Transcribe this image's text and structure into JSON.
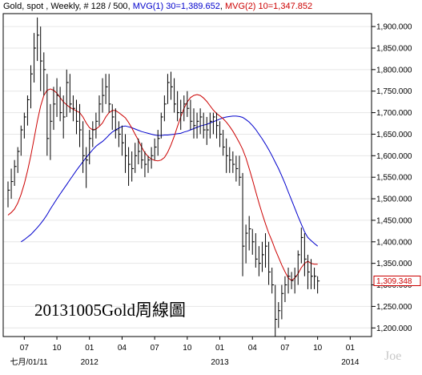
{
  "header": {
    "symbol": "Gold, spot",
    "sep": " ,",
    "period": "Weekly",
    "bars": "# 128 / 500",
    "mvg1": "MVG(1) 30=1,389.652",
    "mvg2": "MVG(2) 10=1,347.852"
  },
  "watermark": "20131005Gold周線圖",
  "signature": "Joe",
  "colors": {
    "price": "#000000",
    "ma30": "#0000cc",
    "ma10": "#cc0000",
    "last_price_box": "#cc0000",
    "grid": "#e6e6e6",
    "frame": "#000000"
  },
  "chart_data": {
    "type": "ohlc-bar",
    "title": "Gold, spot , Weekly",
    "ylim": [
      1180,
      1930
    ],
    "y_ticks": [
      "1,200.000",
      "1,250.000",
      "1,300.000",
      "1,350.000",
      "1,400.000",
      "1,450.000",
      "1,500.000",
      "1,550.000",
      "1,600.000",
      "1,650.000",
      "1,700.000",
      "1,750.000",
      "1,800.000",
      "1,850.000",
      "1,900.000"
    ],
    "y_tick_values": [
      1200,
      1250,
      1300,
      1350,
      1400,
      1450,
      1500,
      1550,
      1600,
      1650,
      1700,
      1750,
      1800,
      1850,
      1900
    ],
    "last_price_label": "1,309.348",
    "last_price": 1309.348,
    "x_tick_labels": [
      {
        "week": 5,
        "label": "07"
      },
      {
        "week": 15,
        "label": "10"
      },
      {
        "week": 25,
        "label": "01"
      },
      {
        "week": 35,
        "label": "04"
      },
      {
        "week": 45,
        "label": "07"
      },
      {
        "week": 55,
        "label": "10"
      },
      {
        "week": 65,
        "label": "01"
      },
      {
        "week": 75,
        "label": "04"
      },
      {
        "week": 85,
        "label": "07"
      },
      {
        "week": 95,
        "label": "10"
      },
      {
        "week": 105,
        "label": "01"
      }
    ],
    "x_year_labels": [
      {
        "week": 0,
        "label": "七月/01/11"
      },
      {
        "week": 25,
        "label": "2012"
      },
      {
        "week": 65,
        "label": "2013"
      },
      {
        "week": 105,
        "label": "2014"
      }
    ],
    "bars": [
      {
        "h": 1540,
        "l": 1480,
        "c": 1520
      },
      {
        "h": 1570,
        "l": 1500,
        "c": 1540
      },
      {
        "h": 1590,
        "l": 1530,
        "c": 1575
      },
      {
        "h": 1620,
        "l": 1560,
        "c": 1610
      },
      {
        "h": 1670,
        "l": 1600,
        "c": 1660
      },
      {
        "h": 1700,
        "l": 1640,
        "c": 1690
      },
      {
        "h": 1740,
        "l": 1670,
        "c": 1730
      },
      {
        "h": 1810,
        "l": 1710,
        "c": 1790
      },
      {
        "h": 1885,
        "l": 1770,
        "c": 1850
      },
      {
        "h": 1921,
        "l": 1820,
        "c": 1880
      },
      {
        "h": 1900,
        "l": 1750,
        "c": 1820
      },
      {
        "h": 1840,
        "l": 1740,
        "c": 1800
      },
      {
        "h": 1790,
        "l": 1600,
        "c": 1640
      },
      {
        "h": 1720,
        "l": 1590,
        "c": 1680
      },
      {
        "h": 1760,
        "l": 1660,
        "c": 1720
      },
      {
        "h": 1780,
        "l": 1690,
        "c": 1740
      },
      {
        "h": 1760,
        "l": 1680,
        "c": 1700
      },
      {
        "h": 1740,
        "l": 1640,
        "c": 1690
      },
      {
        "h": 1800,
        "l": 1690,
        "c": 1770
      },
      {
        "h": 1790,
        "l": 1700,
        "c": 1720
      },
      {
        "h": 1740,
        "l": 1680,
        "c": 1710
      },
      {
        "h": 1730,
        "l": 1650,
        "c": 1680
      },
      {
        "h": 1720,
        "l": 1620,
        "c": 1660
      },
      {
        "h": 1680,
        "l": 1560,
        "c": 1600
      },
      {
        "h": 1620,
        "l": 1525,
        "c": 1590
      },
      {
        "h": 1660,
        "l": 1580,
        "c": 1640
      },
      {
        "h": 1680,
        "l": 1620,
        "c": 1660
      },
      {
        "h": 1700,
        "l": 1640,
        "c": 1680
      },
      {
        "h": 1740,
        "l": 1670,
        "c": 1720
      },
      {
        "h": 1780,
        "l": 1700,
        "c": 1740
      },
      {
        "h": 1790,
        "l": 1720,
        "c": 1760
      },
      {
        "h": 1790,
        "l": 1700,
        "c": 1720
      },
      {
        "h": 1720,
        "l": 1660,
        "c": 1690
      },
      {
        "h": 1710,
        "l": 1640,
        "c": 1660
      },
      {
        "h": 1680,
        "l": 1620,
        "c": 1650
      },
      {
        "h": 1670,
        "l": 1600,
        "c": 1630
      },
      {
        "h": 1650,
        "l": 1560,
        "c": 1600
      },
      {
        "h": 1620,
        "l": 1530,
        "c": 1580
      },
      {
        "h": 1610,
        "l": 1540,
        "c": 1570
      },
      {
        "h": 1630,
        "l": 1560,
        "c": 1600
      },
      {
        "h": 1640,
        "l": 1580,
        "c": 1610
      },
      {
        "h": 1630,
        "l": 1570,
        "c": 1590
      },
      {
        "h": 1610,
        "l": 1550,
        "c": 1580
      },
      {
        "h": 1600,
        "l": 1560,
        "c": 1590
      },
      {
        "h": 1620,
        "l": 1570,
        "c": 1600
      },
      {
        "h": 1640,
        "l": 1590,
        "c": 1620
      },
      {
        "h": 1660,
        "l": 1600,
        "c": 1640
      },
      {
        "h": 1700,
        "l": 1640,
        "c": 1690
      },
      {
        "h": 1740,
        "l": 1680,
        "c": 1720
      },
      {
        "h": 1790,
        "l": 1720,
        "c": 1770
      },
      {
        "h": 1795,
        "l": 1730,
        "c": 1760
      },
      {
        "h": 1780,
        "l": 1700,
        "c": 1720
      },
      {
        "h": 1750,
        "l": 1680,
        "c": 1700
      },
      {
        "h": 1730,
        "l": 1660,
        "c": 1700
      },
      {
        "h": 1740,
        "l": 1680,
        "c": 1720
      },
      {
        "h": 1750,
        "l": 1690,
        "c": 1710
      },
      {
        "h": 1730,
        "l": 1660,
        "c": 1680
      },
      {
        "h": 1710,
        "l": 1640,
        "c": 1670
      },
      {
        "h": 1700,
        "l": 1640,
        "c": 1680
      },
      {
        "h": 1710,
        "l": 1650,
        "c": 1690
      },
      {
        "h": 1700,
        "l": 1640,
        "c": 1660
      },
      {
        "h": 1690,
        "l": 1625,
        "c": 1660
      },
      {
        "h": 1700,
        "l": 1640,
        "c": 1680
      },
      {
        "h": 1700,
        "l": 1650,
        "c": 1690
      },
      {
        "h": 1700,
        "l": 1640,
        "c": 1670
      },
      {
        "h": 1680,
        "l": 1620,
        "c": 1650
      },
      {
        "h": 1660,
        "l": 1600,
        "c": 1620
      },
      {
        "h": 1640,
        "l": 1560,
        "c": 1600
      },
      {
        "h": 1620,
        "l": 1560,
        "c": 1590
      },
      {
        "h": 1610,
        "l": 1560,
        "c": 1580
      },
      {
        "h": 1600,
        "l": 1540,
        "c": 1570
      },
      {
        "h": 1600,
        "l": 1530,
        "c": 1550
      },
      {
        "h": 1560,
        "l": 1320,
        "c": 1390
      },
      {
        "h": 1440,
        "l": 1350,
        "c": 1420
      },
      {
        "h": 1460,
        "l": 1380,
        "c": 1430
      },
      {
        "h": 1430,
        "l": 1370,
        "c": 1400
      },
      {
        "h": 1420,
        "l": 1340,
        "c": 1360
      },
      {
        "h": 1390,
        "l": 1320,
        "c": 1350
      },
      {
        "h": 1400,
        "l": 1330,
        "c": 1370
      },
      {
        "h": 1420,
        "l": 1340,
        "c": 1390
      },
      {
        "h": 1400,
        "l": 1300,
        "c": 1330
      },
      {
        "h": 1340,
        "l": 1280,
        "c": 1300
      },
      {
        "h": 1300,
        "l": 1180,
        "c": 1220
      },
      {
        "h": 1260,
        "l": 1200,
        "c": 1240
      },
      {
        "h": 1300,
        "l": 1220,
        "c": 1280
      },
      {
        "h": 1320,
        "l": 1260,
        "c": 1300
      },
      {
        "h": 1340,
        "l": 1280,
        "c": 1320
      },
      {
        "h": 1330,
        "l": 1290,
        "c": 1310
      },
      {
        "h": 1340,
        "l": 1280,
        "c": 1320
      },
      {
        "h": 1380,
        "l": 1300,
        "c": 1370
      },
      {
        "h": 1433,
        "l": 1350,
        "c": 1410
      },
      {
        "h": 1420,
        "l": 1320,
        "c": 1360
      },
      {
        "h": 1370,
        "l": 1290,
        "c": 1330
      },
      {
        "h": 1360,
        "l": 1290,
        "c": 1320
      },
      {
        "h": 1340,
        "l": 1290,
        "c": 1320
      },
      {
        "h": 1320,
        "l": 1280,
        "c": 1309
      }
    ],
    "ma30": [
      1400,
      1405,
      1411,
      1417,
      1425,
      1433,
      1442,
      1452,
      1463,
      1476,
      1488,
      1500,
      1511,
      1522,
      1533,
      1544,
      1555,
      1566,
      1576,
      1586,
      1596,
      1605,
      1614,
      1622,
      1628,
      1633,
      1640,
      1648,
      1655,
      1660,
      1664,
      1668,
      1669,
      1667,
      1665,
      1662,
      1659,
      1656,
      1654,
      1652,
      1650,
      1648,
      1647,
      1647,
      1648,
      1648,
      1649,
      1650,
      1651,
      1652,
      1655,
      1657,
      1660,
      1663,
      1666,
      1669,
      1671,
      1673,
      1676,
      1679,
      1682,
      1685,
      1688,
      1690,
      1691,
      1692,
      1692,
      1691,
      1689,
      1684,
      1678,
      1670,
      1661,
      1650,
      1639,
      1627,
      1614,
      1600,
      1585,
      1570,
      1553,
      1535,
      1516,
      1497,
      1478,
      1459,
      1441,
      1423,
      1410,
      1403,
      1396,
      1390
    ],
    "ma30_start_week": 4,
    "ma10": [
      1462,
      1468,
      1476,
      1490,
      1510,
      1535,
      1565,
      1600,
      1640,
      1680,
      1715,
      1740,
      1752,
      1755,
      1752,
      1745,
      1735,
      1725,
      1718,
      1712,
      1708,
      1704,
      1700,
      1690,
      1676,
      1665,
      1660,
      1662,
      1668,
      1676,
      1690,
      1700,
      1705,
      1705,
      1700,
      1694,
      1688,
      1677,
      1664,
      1650,
      1636,
      1620,
      1607,
      1598,
      1592,
      1589,
      1588,
      1590,
      1596,
      1608,
      1625,
      1645,
      1668,
      1690,
      1710,
      1725,
      1735,
      1740,
      1742,
      1740,
      1734,
      1726,
      1716,
      1706,
      1698,
      1692,
      1686,
      1678,
      1668,
      1657,
      1644,
      1630,
      1615,
      1595,
      1570,
      1544,
      1517,
      1490,
      1465,
      1442,
      1420,
      1402,
      1382,
      1364,
      1346,
      1330,
      1316,
      1310,
      1316,
      1326,
      1340,
      1350,
      1355,
      1350,
      1348,
      1348
    ],
    "ma10_start_week": 0
  }
}
